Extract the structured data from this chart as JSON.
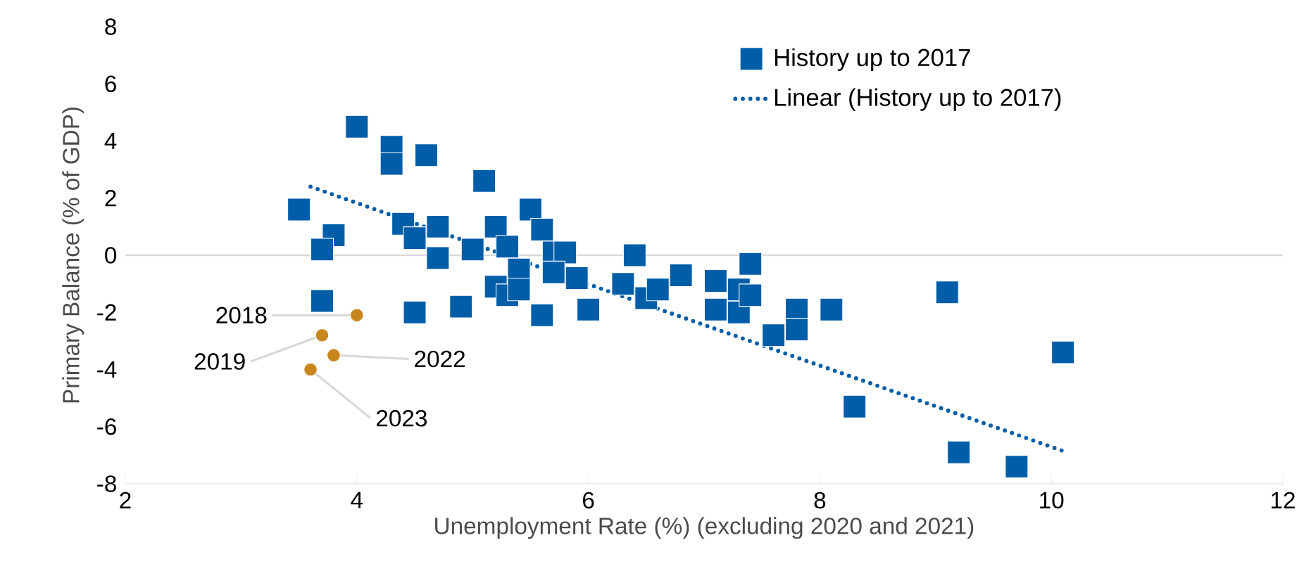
{
  "chart_data": {
    "type": "scatter",
    "xlabel": "Unemployment Rate (%) (excluding 2020 and 2021)",
    "ylabel": "Primary Balance (% of GDP)",
    "xlim": [
      2,
      12
    ],
    "xticks": [
      2,
      4,
      6,
      8,
      10,
      12
    ],
    "ylim": [
      -8,
      8
    ],
    "yticks": [
      -8,
      -6,
      -4,
      -2,
      0,
      2,
      4,
      6,
      8
    ],
    "legend": "top right",
    "ref_lines": [
      {
        "axis": "y",
        "value": 0,
        "color": "#d9d9d9"
      }
    ],
    "series": [
      {
        "name": "History up to 2017",
        "marker": "square",
        "color": "#005da8",
        "x": [
          3.5,
          3.8,
          3.7,
          4.0,
          4.3,
          4.3,
          4.6,
          4.4,
          4.5,
          4.7,
          4.7,
          5.1,
          5.2,
          5.3,
          5.0,
          5.5,
          5.6,
          5.7,
          5.8,
          5.4,
          5.2,
          5.3,
          5.4,
          5.7,
          5.9,
          5.6,
          6.0,
          4.9,
          4.5,
          3.7,
          6.4,
          6.3,
          6.5,
          6.6,
          6.8,
          7.1,
          7.1,
          7.3,
          7.3,
          7.4,
          7.4,
          7.6,
          7.8,
          7.8,
          8.1,
          8.3,
          9.1,
          9.2,
          9.7,
          10.1
        ],
        "values": [
          1.6,
          0.7,
          0.2,
          4.5,
          3.8,
          3.2,
          3.5,
          1.1,
          0.6,
          1.0,
          -0.1,
          2.6,
          1.0,
          0.3,
          0.2,
          1.6,
          0.9,
          0.1,
          0.1,
          -0.5,
          -1.1,
          -1.4,
          -1.2,
          -0.6,
          -0.8,
          -2.1,
          -1.9,
          -1.8,
          -2.0,
          -1.6,
          0.0,
          -1.0,
          -1.5,
          -1.2,
          -0.7,
          -0.9,
          -1.9,
          -1.2,
          -2.0,
          -0.3,
          -1.4,
          -2.8,
          -1.9,
          -2.6,
          -1.9,
          -5.3,
          -1.3,
          -6.9,
          -7.4,
          -3.4
        ]
      },
      {
        "name": "Linear (History up to 2017)",
        "type": "line",
        "marker": "none",
        "line_style": "dotted",
        "color": "#005da8",
        "x": [
          3.6,
          10.1
        ],
        "values": [
          2.4,
          -6.85
        ]
      },
      {
        "marker": "circle",
        "color": "#c8861e",
        "x": [
          4.0,
          3.7,
          3.8,
          3.6
        ],
        "values": [
          -2.1,
          -2.8,
          -3.5,
          -4.0
        ]
      }
    ],
    "annotations": [
      {
        "text": "2018",
        "x": 4.0,
        "y": -2.1
      },
      {
        "text": "2019",
        "x": 3.7,
        "y": -2.8
      },
      {
        "text": "2022",
        "x": 3.8,
        "y": -3.5
      },
      {
        "text": "2023",
        "x": 3.6,
        "y": -4.0
      }
    ]
  }
}
